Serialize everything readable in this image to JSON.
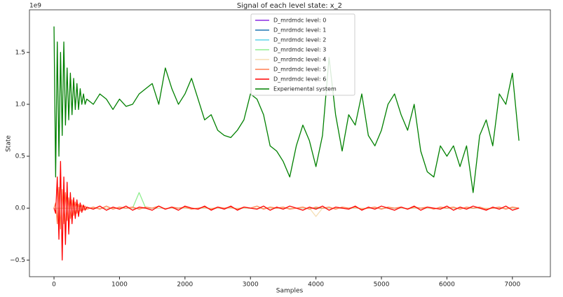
{
  "chart_data": {
    "type": "line",
    "title": "Signal of each level state: x_2",
    "xlabel": "Samples",
    "ylabel": "State",
    "offset_text": "1e9",
    "xlim": [
      -375,
      7580
    ],
    "ylim": [
      -0.66,
      1.91
    ],
    "xticks": [
      0,
      1000,
      2000,
      3000,
      4000,
      5000,
      6000,
      7000
    ],
    "yticks": [
      {
        "value": -0.5,
        "label": "−0.5"
      },
      {
        "value": 0,
        "label": "0.0"
      },
      {
        "value": 0.5,
        "label": "0.5"
      },
      {
        "value": 1,
        "label": "1.0"
      },
      {
        "value": 1.5,
        "label": "1.5"
      }
    ],
    "legend": "upper center",
    "x": [
      0,
      25,
      50,
      75,
      100,
      125,
      150,
      175,
      200,
      225,
      250,
      275,
      300,
      325,
      350,
      375,
      400,
      425,
      450,
      475,
      500,
      600,
      700,
      800,
      900,
      1000,
      1100,
      1200,
      1300,
      1400,
      1500,
      1600,
      1700,
      1800,
      1900,
      2000,
      2100,
      2200,
      2300,
      2400,
      2500,
      2600,
      2700,
      2800,
      2900,
      3000,
      3100,
      3200,
      3300,
      3400,
      3500,
      3600,
      3700,
      3800,
      3900,
      4000,
      4100,
      4200,
      4300,
      4400,
      4500,
      4600,
      4700,
      4800,
      4900,
      5000,
      5100,
      5200,
      5300,
      5400,
      5500,
      5600,
      5700,
      5800,
      5900,
      6000,
      6100,
      6200,
      6300,
      6400,
      6500,
      6600,
      6700,
      6800,
      6900,
      7000,
      7100
    ],
    "series": [
      {
        "name": "D_mrdmdc level: 0",
        "color": "#8a2be2",
        "values": [
          0,
          0,
          0,
          0,
          0,
          0,
          0,
          0,
          0,
          0,
          0,
          0,
          0,
          0,
          0,
          0,
          0,
          0,
          0,
          0,
          0,
          0,
          0,
          0,
          0,
          0,
          0,
          0,
          0,
          0,
          0,
          0,
          0,
          0,
          0,
          0,
          0,
          0,
          0,
          0,
          0,
          0,
          0,
          0,
          0,
          0,
          0,
          0,
          0,
          0,
          0,
          0,
          0,
          0,
          0,
          0,
          0,
          0,
          0,
          0,
          0,
          0,
          0,
          0,
          0,
          0,
          0,
          0,
          0,
          0,
          0,
          0,
          0,
          0,
          0,
          0,
          0,
          0,
          0,
          0,
          0,
          0,
          0,
          0,
          0,
          0,
          0
        ]
      },
      {
        "name": "D_mrdmdc level: 1",
        "color": "#1f77b4",
        "values": [
          0,
          0,
          0,
          0,
          0,
          0,
          0,
          0,
          0,
          0,
          0,
          0,
          0,
          0,
          0,
          0,
          0,
          0,
          0,
          0,
          0,
          0,
          0,
          0,
          0,
          0,
          0,
          0,
          0,
          0,
          0,
          0,
          0,
          0,
          0,
          0,
          0,
          0,
          0,
          0,
          0,
          0,
          0,
          0,
          0,
          0,
          0,
          0,
          0,
          0,
          0,
          0,
          0,
          0,
          0,
          0,
          0,
          0,
          0,
          0,
          0,
          0,
          0,
          0,
          0,
          0,
          0,
          0,
          0,
          0,
          0,
          0,
          0,
          0,
          0,
          0,
          0,
          0,
          0,
          0,
          0,
          0,
          0,
          0,
          0,
          0,
          0
        ]
      },
      {
        "name": "D_mrdmdc level: 2",
        "color": "#5fd3e8",
        "values": [
          0,
          0,
          0,
          0,
          0,
          0,
          0,
          0,
          0,
          0,
          0,
          0,
          0,
          0,
          0,
          0,
          0,
          0,
          0,
          0,
          0,
          0,
          0,
          0,
          0,
          0,
          0,
          0,
          0,
          0,
          0,
          0,
          0,
          0,
          0,
          0,
          0,
          0,
          0,
          0,
          0,
          0,
          0,
          0,
          0,
          0,
          0,
          0,
          0,
          0,
          0,
          0,
          0,
          0,
          0,
          0,
          0,
          0,
          0,
          0,
          0,
          0,
          0,
          0,
          0,
          0,
          0,
          0,
          0,
          0,
          0,
          0,
          0,
          0,
          0,
          0,
          0,
          0,
          0,
          0,
          0,
          0,
          0,
          0,
          0,
          0,
          0
        ]
      },
      {
        "name": "D_mrdmdc level: 3",
        "color": "#90ee90",
        "values": [
          0,
          0,
          0,
          0,
          0,
          0,
          0,
          0,
          0,
          0,
          0,
          0,
          0,
          0,
          0,
          0,
          0,
          0,
          0,
          0,
          0,
          0,
          0,
          0,
          0,
          0,
          0,
          0,
          0.15,
          0,
          0,
          0,
          0,
          0,
          0,
          0,
          0,
          0,
          0,
          0,
          0,
          0,
          0,
          0,
          0,
          0,
          0,
          0,
          0,
          0,
          0,
          0,
          0,
          0,
          0,
          0,
          0,
          0,
          0,
          0,
          0,
          0,
          0,
          0,
          0,
          0,
          0,
          0,
          0,
          0,
          0,
          0,
          0,
          0,
          0,
          0,
          0,
          0,
          0,
          0,
          0,
          0,
          0,
          0,
          0,
          0,
          0
        ]
      },
      {
        "name": "D_mrdmdc level: 4",
        "color": "#f5deb3",
        "values": [
          0,
          0,
          0,
          0,
          0,
          0,
          0,
          0,
          0,
          0,
          0,
          0,
          0,
          0,
          0,
          0,
          0,
          0,
          0,
          0,
          0,
          0,
          0,
          0,
          0,
          0,
          0,
          0,
          0,
          0,
          0,
          0,
          0,
          0,
          0,
          0,
          0,
          0,
          0,
          0,
          0,
          0,
          0,
          0,
          0,
          0,
          0,
          0,
          0,
          0,
          0,
          0,
          0,
          0,
          0,
          -0.08,
          0,
          0,
          0,
          0,
          0,
          0,
          0,
          0,
          0,
          0,
          0,
          0,
          0,
          0,
          0,
          0,
          0,
          0,
          0,
          0,
          0,
          0,
          0,
          0,
          0,
          0,
          0,
          0,
          0,
          0,
          0
        ]
      },
      {
        "name": "D_mrdmdc level: 5",
        "color": "#ff7f50",
        "values": [
          0,
          0.05,
          -0.15,
          0.2,
          -0.2,
          0.18,
          -0.15,
          0.15,
          -0.12,
          0.1,
          -0.1,
          0.08,
          -0.07,
          0.06,
          -0.05,
          0.04,
          -0.03,
          0.03,
          -0.02,
          0.02,
          -0.01,
          0.01,
          -0.01,
          0.02,
          -0.01,
          0.01,
          0,
          0.01,
          -0.01,
          0.01,
          0,
          0.02,
          -0.01,
          0.01,
          0,
          0.01,
          -0.01,
          0,
          0.01,
          -0.01,
          0.01,
          0,
          0.01,
          -0.01,
          0.01,
          0,
          0.02,
          -0.01,
          0.01,
          0,
          0.01,
          -0.01,
          0,
          0.01,
          -0.01,
          0.01,
          0,
          0.01,
          -0.01,
          0.01,
          0,
          0.01,
          -0.01,
          0,
          0.01,
          -0.01,
          0.01,
          0,
          0.01,
          -0.01,
          0.01,
          0,
          0.01,
          -0.01,
          0.01,
          0,
          0.01,
          -0.01,
          0.01,
          0,
          0.01,
          -0.01,
          0,
          0.01,
          -0.01,
          0.01,
          0
        ]
      },
      {
        "name": "D_mrdmdc level: 6",
        "color": "#ff0000",
        "values": [
          0,
          -0.05,
          0.3,
          -0.3,
          0.45,
          -0.5,
          0.3,
          -0.35,
          0.25,
          -0.25,
          0.15,
          -0.15,
          0.1,
          -0.1,
          0.08,
          -0.08,
          0.05,
          -0.04,
          0.03,
          -0.02,
          0.01,
          -0.01,
          0.02,
          -0.02,
          0.01,
          -0.01,
          0.02,
          -0.02,
          0.01,
          0,
          -0.02,
          0.02,
          -0.01,
          0.01,
          -0.02,
          0.02,
          0,
          -0.01,
          0.02,
          -0.02,
          0.01,
          -0.01,
          0.02,
          -0.02,
          0.01,
          0,
          -0.01,
          0.02,
          -0.02,
          0.01,
          -0.01,
          0.02,
          0,
          -0.02,
          0.01,
          -0.01,
          0.02,
          -0.02,
          0.01,
          0,
          -0.01,
          0.02,
          -0.02,
          0.01,
          -0.01,
          0.02,
          0,
          -0.02,
          0.01,
          -0.01,
          0.02,
          -0.02,
          0.01,
          0,
          -0.01,
          0.02,
          -0.02,
          0.01,
          -0.01,
          0.02,
          0,
          -0.02,
          0.01,
          -0.01,
          0.02,
          -0.02,
          0
        ]
      },
      {
        "name": "Experiemental system",
        "color": "#008000",
        "values": [
          1.75,
          0.3,
          1.6,
          0.5,
          1.5,
          0.7,
          1.6,
          0.8,
          1.35,
          0.85,
          1.3,
          0.9,
          1.25,
          0.95,
          1.2,
          0.95,
          1.15,
          1.0,
          1.1,
          1.0,
          1.05,
          1.0,
          1.1,
          1.05,
          0.95,
          1.05,
          0.98,
          1.0,
          1.1,
          1.15,
          1.2,
          1.0,
          1.35,
          1.15,
          1.0,
          1.1,
          1.25,
          1.05,
          0.85,
          0.9,
          0.75,
          0.7,
          0.68,
          0.75,
          0.85,
          1.1,
          1.05,
          0.9,
          0.6,
          0.55,
          0.45,
          0.3,
          0.6,
          0.8,
          0.65,
          0.4,
          0.7,
          1.45,
          0.9,
          0.55,
          0.9,
          0.8,
          1.1,
          0.7,
          0.6,
          0.75,
          1.0,
          1.1,
          0.9,
          0.75,
          1.0,
          0.55,
          0.35,
          0.3,
          0.6,
          0.5,
          0.6,
          0.4,
          0.6,
          0.15,
          0.7,
          0.85,
          0.6,
          1.1,
          1.0,
          1.3,
          0.65
        ]
      }
    ]
  }
}
